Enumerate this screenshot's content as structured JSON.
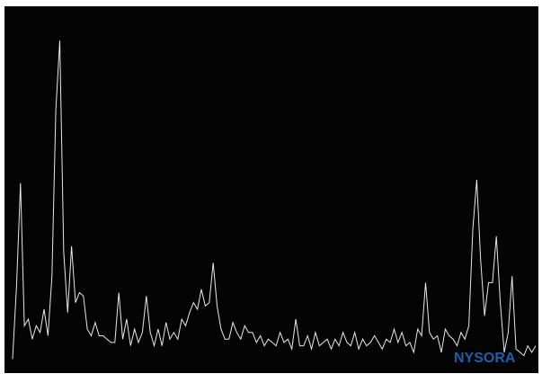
{
  "page": {
    "background": "#ffffff",
    "plot_background": "#040404",
    "line_color": "#e8e8e8"
  },
  "chart_data": {
    "type": "line",
    "title": "",
    "xlabel": "",
    "ylabel": "",
    "grid": false,
    "legend": "none",
    "xlim": [
      0,
      133
    ],
    "ylim": [
      0,
      100
    ],
    "series": [
      {
        "color": "#e8e8e8",
        "x": [
          0,
          1,
          2,
          3,
          4,
          5,
          6,
          7,
          8,
          9,
          10,
          11,
          12,
          13,
          14,
          15,
          16,
          17,
          18,
          19,
          20,
          21,
          22,
          23,
          24,
          25,
          26,
          27,
          28,
          29,
          30,
          31,
          32,
          33,
          34,
          35,
          36,
          37,
          38,
          39,
          40,
          41,
          42,
          43,
          44,
          45,
          46,
          47,
          48,
          49,
          50,
          51,
          52,
          53,
          54,
          55,
          56,
          57,
          58,
          59,
          60,
          61,
          62,
          63,
          64,
          65,
          66,
          67,
          68,
          69,
          70,
          71,
          72,
          73,
          74,
          75,
          76,
          77,
          78,
          79,
          80,
          81,
          82,
          83,
          84,
          85,
          86,
          87,
          88,
          89,
          90,
          91,
          92,
          93,
          94,
          95,
          96,
          97,
          98,
          99,
          100,
          101,
          102,
          103,
          104,
          105,
          106,
          107,
          108,
          109,
          110,
          111,
          112,
          113,
          114,
          115,
          116,
          117,
          118,
          119,
          120,
          121,
          122,
          123,
          124,
          125,
          126,
          127,
          128,
          129,
          130,
          131,
          132,
          133
        ],
        "values": [
          1,
          23,
          54,
          11,
          13,
          7,
          11,
          9,
          16,
          8,
          26,
          76,
          97,
          33,
          15,
          35,
          18,
          21,
          20,
          10,
          8,
          12,
          8,
          8,
          7,
          6,
          6,
          21,
          7,
          13,
          5,
          10,
          6,
          9,
          20,
          9,
          5,
          10,
          5,
          12,
          7,
          9,
          7,
          13,
          11,
          15,
          18,
          16,
          22,
          17,
          18,
          30,
          17,
          10,
          7,
          7,
          12,
          9,
          7,
          11,
          9,
          9,
          6,
          8,
          5,
          7,
          6,
          5,
          9,
          6,
          7,
          4,
          13,
          5,
          5,
          8,
          4,
          9,
          5,
          6,
          7,
          4,
          7,
          5,
          9,
          6,
          5,
          9,
          4,
          7,
          5,
          6,
          8,
          6,
          4,
          7,
          6,
          10,
          6,
          9,
          5,
          6,
          3,
          10,
          8,
          24,
          9,
          7,
          8,
          3,
          10,
          8,
          7,
          5,
          9,
          7,
          11,
          40,
          55,
          31,
          14,
          24,
          24,
          38,
          18,
          3,
          9,
          26,
          4,
          3,
          2,
          5,
          3,
          5
        ]
      }
    ],
    "watermark": "NYSORA"
  }
}
